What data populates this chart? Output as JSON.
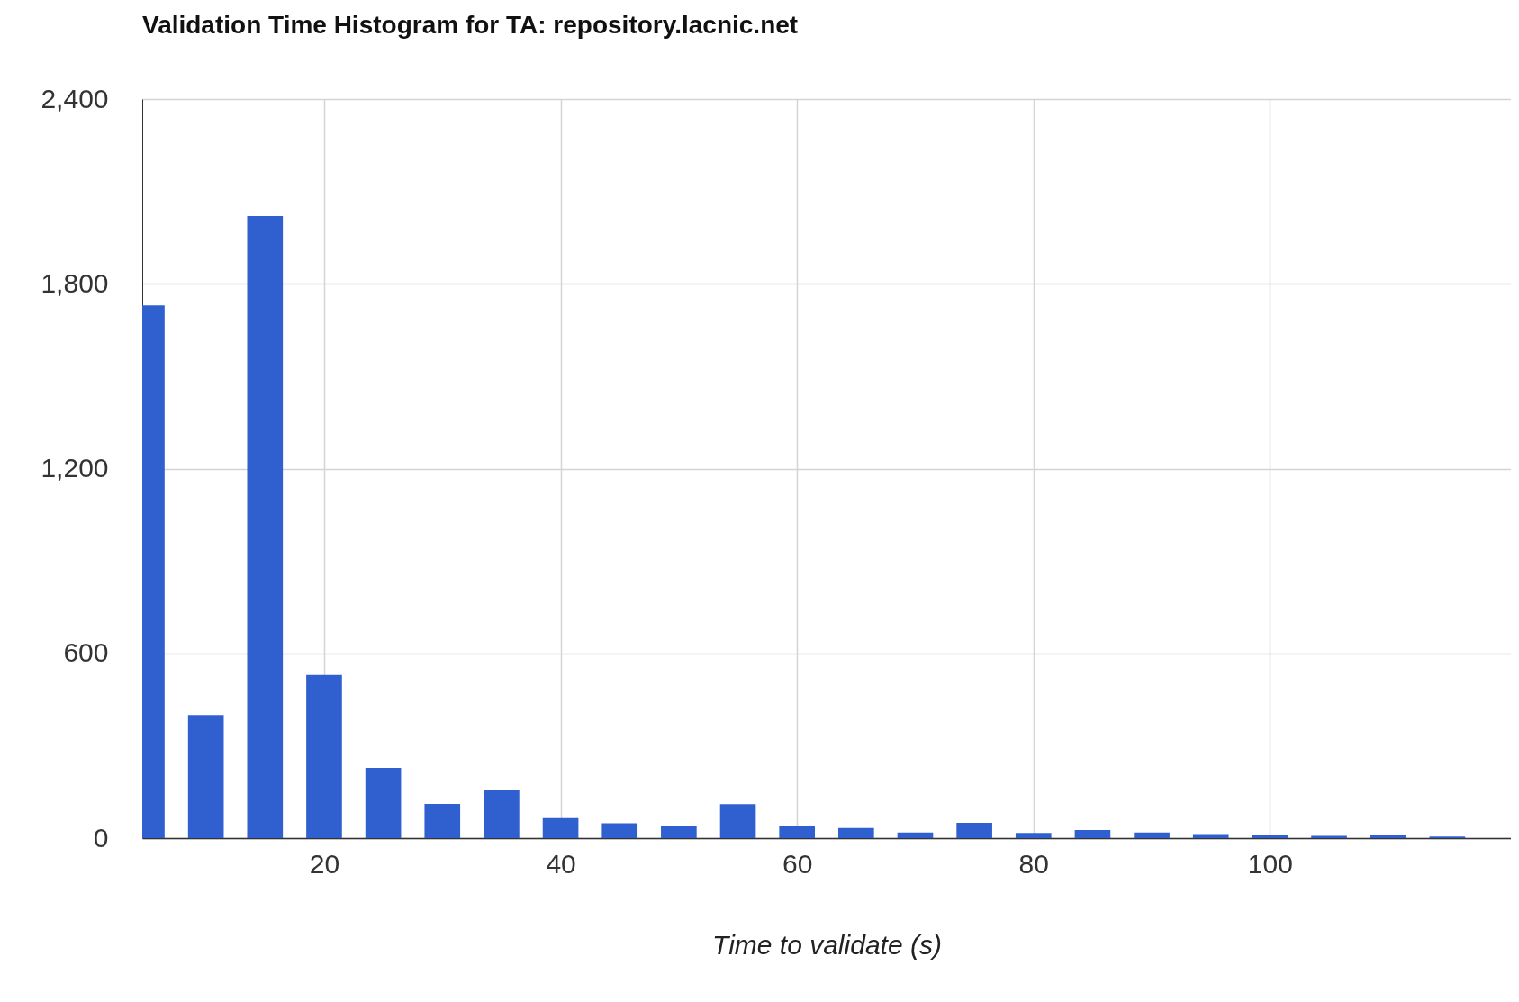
{
  "chart_data": {
    "type": "bar",
    "title": "Validation Time Histogram for TA: repository.lacnic.net",
    "xlabel": "Time to validate (s)",
    "x": [
      5,
      10,
      15,
      20,
      25,
      30,
      35,
      40,
      45,
      50,
      55,
      60,
      65,
      70,
      75,
      80,
      85,
      90,
      95,
      100,
      105,
      110,
      115
    ],
    "values": [
      1730,
      400,
      2020,
      530,
      228,
      111,
      158,
      65,
      48,
      40,
      110,
      40,
      33,
      18,
      50,
      17,
      26,
      18,
      13,
      11,
      7,
      9,
      5
    ],
    "color": "#3060d0",
    "xlim": [
      5,
      120
    ],
    "xticks": [
      20,
      40,
      60,
      80,
      100
    ],
    "ylim": [
      0,
      2400
    ],
    "yticks": [
      {
        "value": 0,
        "label": "0"
      },
      {
        "value": 600,
        "label": "600"
      },
      {
        "value": 1200,
        "label": "1,200"
      },
      {
        "value": 1800,
        "label": "1,800"
      },
      {
        "value": 2400,
        "label": "2,400"
      }
    ],
    "grid": true
  }
}
